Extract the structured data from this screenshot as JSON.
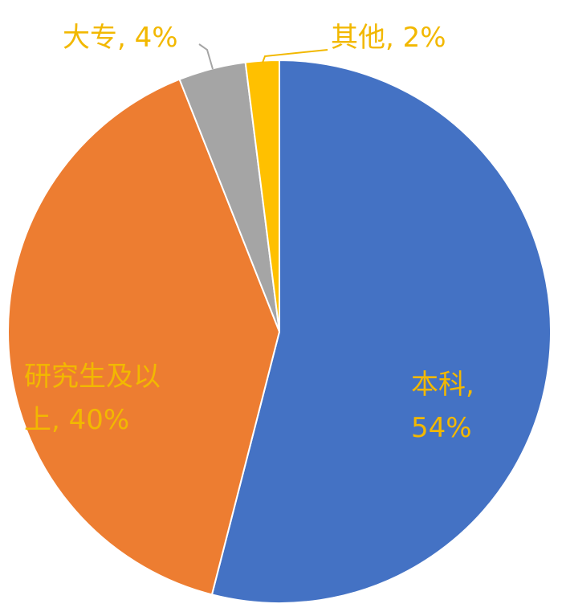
{
  "chart_data": {
    "type": "pie",
    "categories": [
      "本科",
      "研究生及以上",
      "大专",
      "其他"
    ],
    "values": [
      54,
      40,
      4,
      2
    ],
    "value_labels": [
      "本科, 54%",
      "研究生及以上, 40%",
      "大专, 4%",
      "其他, 2%"
    ],
    "colors": [
      "#4472c4",
      "#ed7d31",
      "#a5a5a5",
      "#ffc000"
    ],
    "label_color": "#f2b800"
  }
}
